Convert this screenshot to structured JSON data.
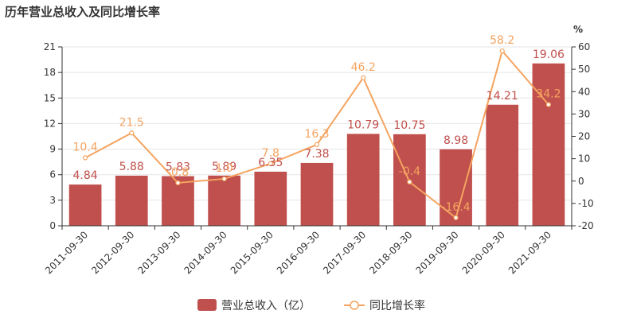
{
  "title": "历年营业总收入及同比增长率",
  "chart_data": {
    "type": "bar",
    "categories": [
      "2011-09-30",
      "2012-09-30",
      "2013-09-30",
      "2014-09-30",
      "2015-09-30",
      "2016-09-30",
      "2017-09-30",
      "2018-09-30",
      "2019-09-30",
      "2020-09-30",
      "2021-09-30"
    ],
    "y_left": {
      "ticks": [
        "0",
        "3",
        "6",
        "9",
        "12",
        "15",
        "18",
        "21"
      ],
      "ylim": [
        0,
        21
      ]
    },
    "y_right": {
      "unit": "%",
      "ticks": [
        "-20",
        "-10",
        "0",
        "10",
        "20",
        "30",
        "40",
        "50",
        "60"
      ],
      "ylim": [
        -20,
        60
      ]
    },
    "series": [
      {
        "name": "营业总收入（亿）",
        "type": "bar",
        "axis": "left",
        "values": [
          4.84,
          5.88,
          5.83,
          5.89,
          6.35,
          7.38,
          10.79,
          10.75,
          8.98,
          14.21,
          19.06
        ],
        "labels": [
          "4.84",
          "5.88",
          "5.83",
          "5.89",
          "6.35",
          "7.38",
          "10.79",
          "10.75",
          "8.98",
          "14.21",
          "19.06"
        ]
      },
      {
        "name": "同比增长率",
        "type": "line",
        "axis": "right",
        "values": [
          10.4,
          21.5,
          -0.8,
          1.0,
          7.8,
          16.3,
          46.2,
          -0.4,
          -16.4,
          58.2,
          34.2
        ],
        "labels": [
          "10.4",
          "21.5",
          "-0.8",
          "1.0",
          "7.8",
          "16.3",
          "46.2",
          "-0.4",
          "-16.4",
          "58.2",
          "34.2"
        ]
      }
    ],
    "grid": true,
    "legend": "bottom-center"
  },
  "colors": {
    "bar": "#c0504d",
    "line": "#f4a460",
    "axis": "#333333",
    "grid": "#e6e6e6"
  }
}
